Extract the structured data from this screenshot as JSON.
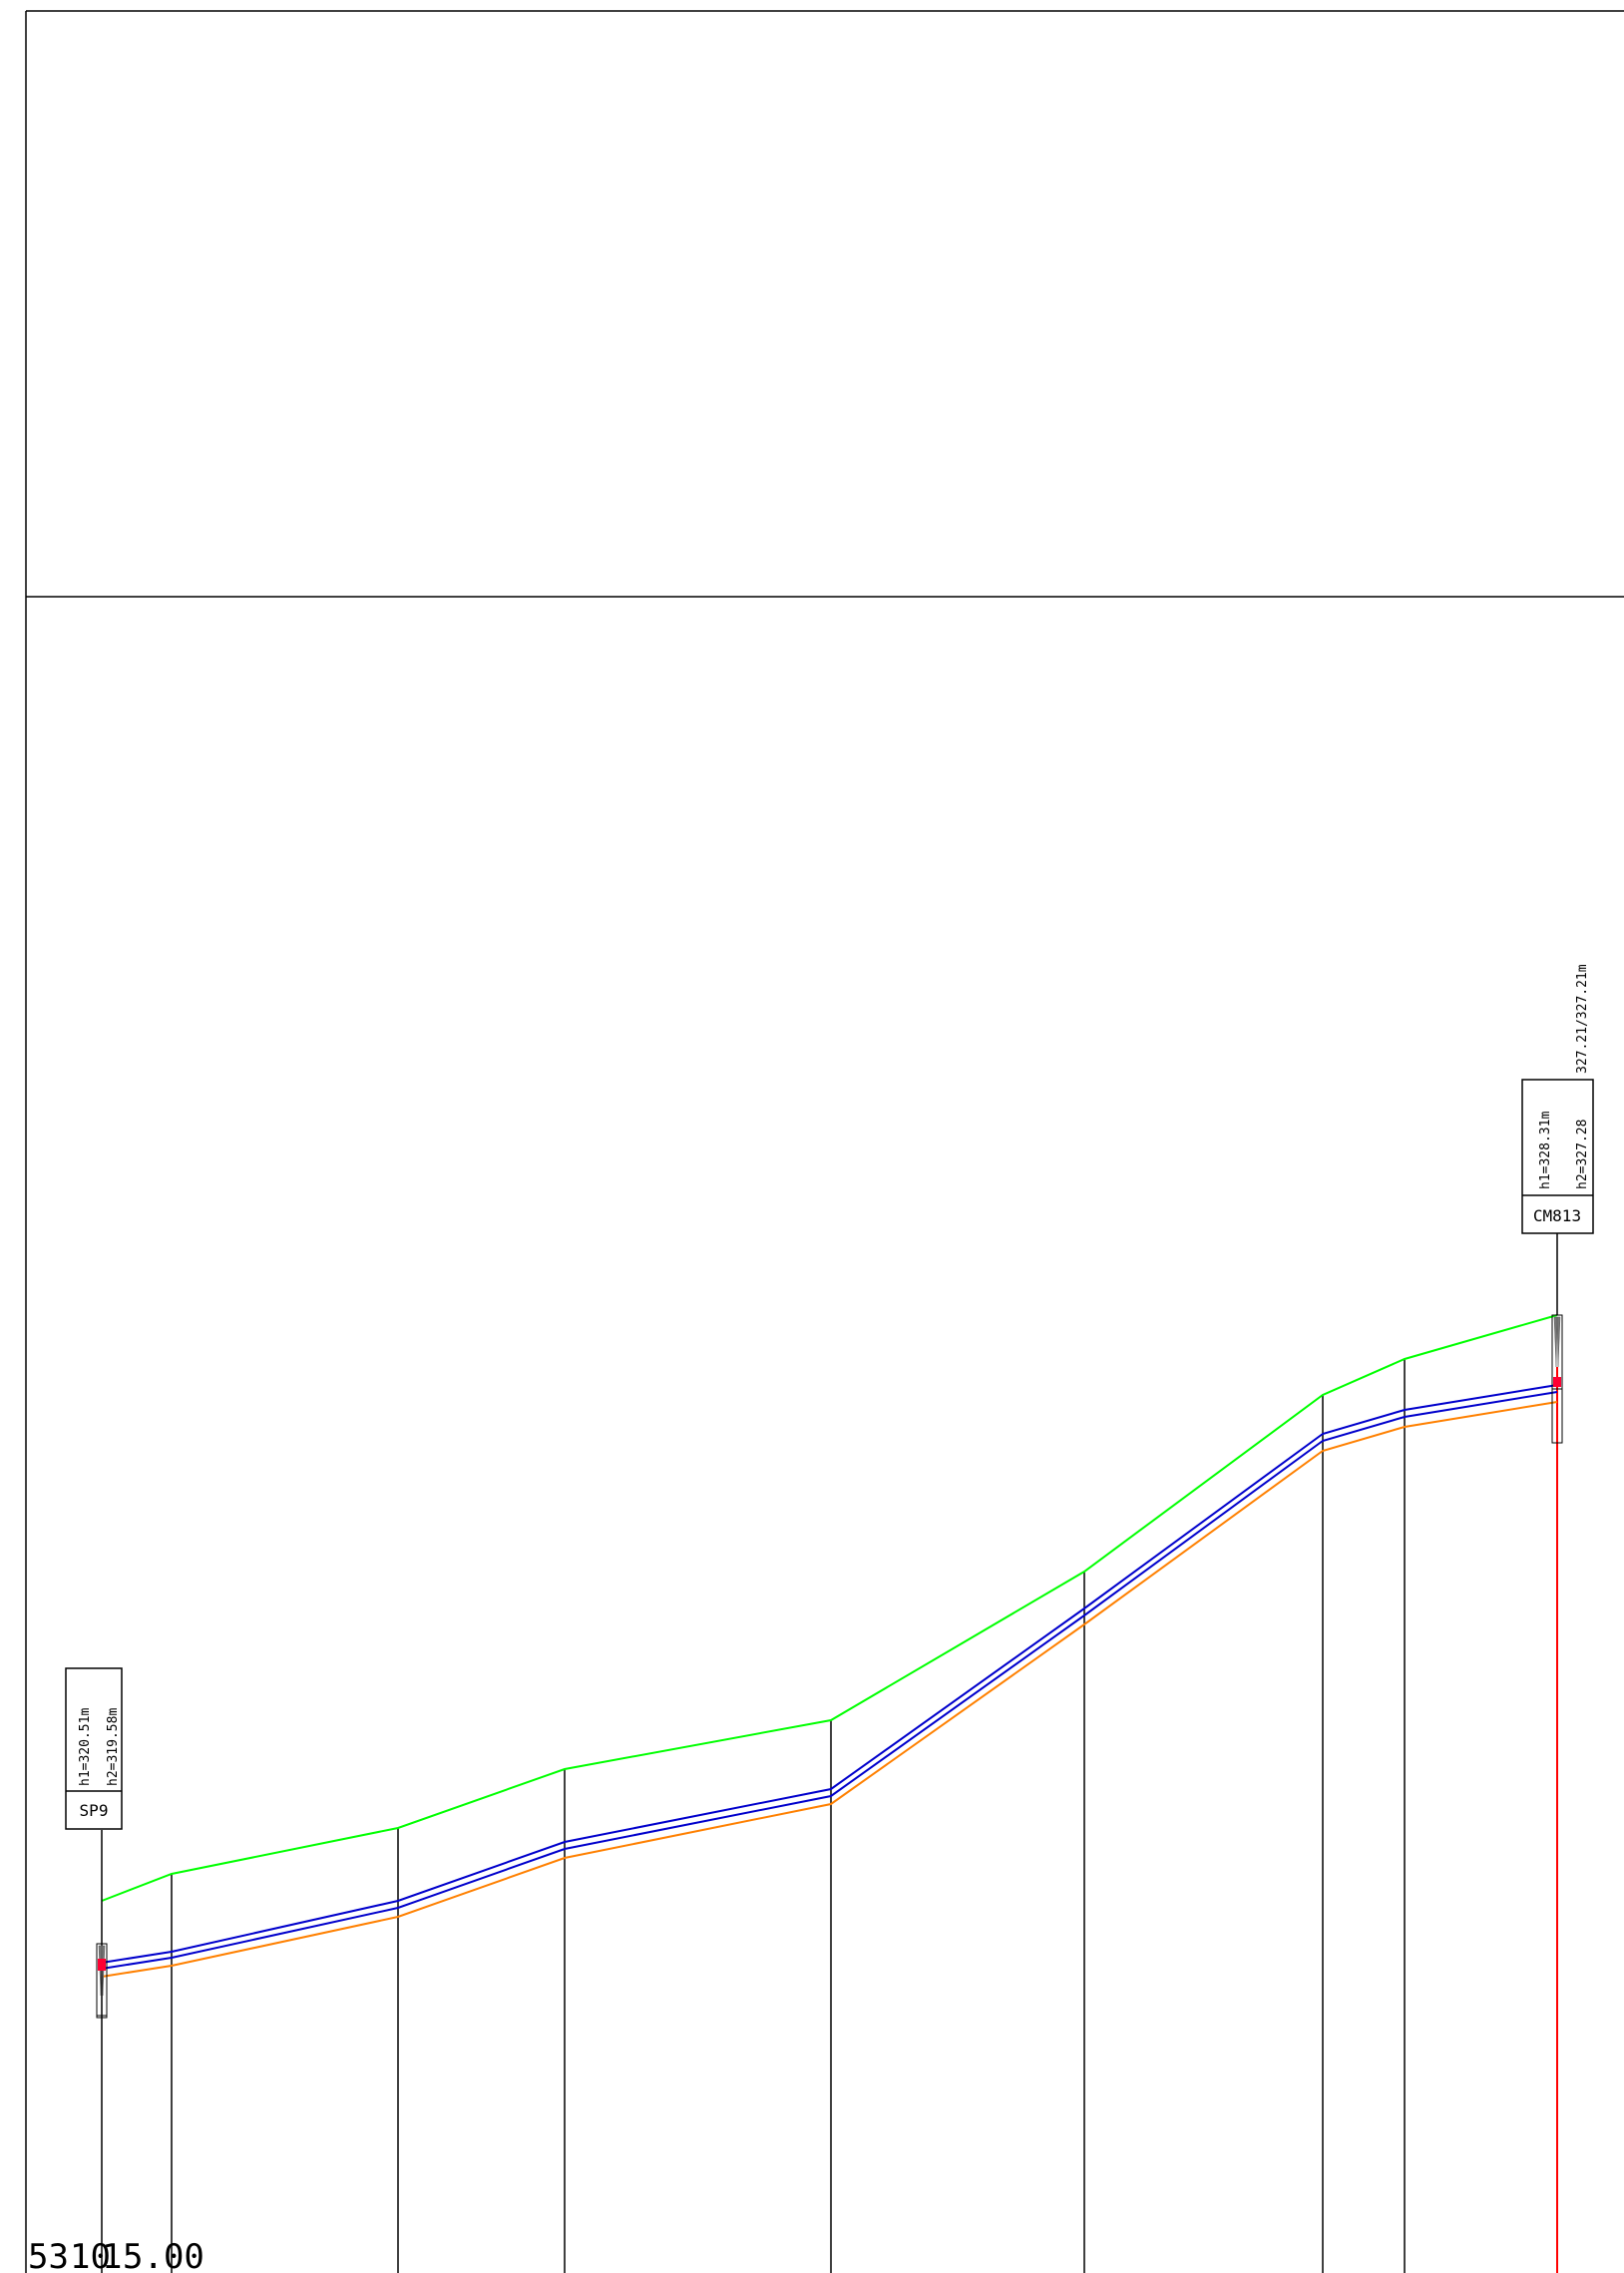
{
  "colors": {
    "ground": "#00ff00",
    "pipe": "#0000cc",
    "pipe_bottom": "#ff8000",
    "frame": "#000000",
    "station_line": "#000000",
    "red_line": "#ff0000",
    "manhole_fill": "#ff0033"
  },
  "manholes": [
    {
      "id": "sp9",
      "name": "SP9",
      "h1": "h1=320.51m",
      "h2": "h2=319.58m",
      "h3": ""
    },
    {
      "id": "cm813",
      "name": "CM813",
      "h1": "h1=328.31m",
      "h2": "h2=327.28",
      "h3": "327.21/327.21m"
    }
  ],
  "bottom_labels": {
    "station_a": "53",
    "station_b": "10",
    "station_c": "1",
    "station_d": "5.00",
    "overlap_text": "5310 5.00"
  },
  "icons": [
    "manhole-symbol-icon"
  ]
}
